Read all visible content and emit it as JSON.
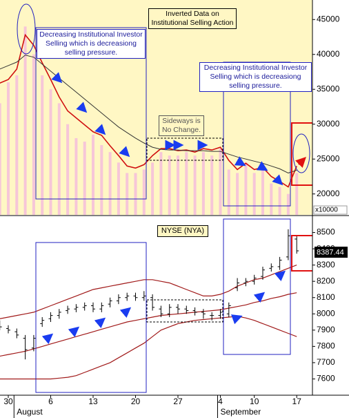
{
  "chart_data": [
    {
      "type": "combo",
      "title": "Inverted Data on Institutional Selling Action",
      "annotations": [
        "Decreasing Institutional Investor Selling which is decreasiong selling pressure.",
        "Sideways is No Change.",
        "Decreasing Institutional Investor Selling which is decreasiong selling pressure."
      ],
      "axis_label": "x10000",
      "ylim": [
        17000,
        47800
      ],
      "yticks": [
        45000,
        40000,
        35000,
        30000,
        25000,
        20000
      ],
      "series": [
        {
          "type": "bar",
          "color": "#f6c6d8",
          "values": [
            33000,
            36000,
            37000,
            44000,
            40000,
            37000,
            35000,
            33000,
            30000,
            28000,
            27500,
            28500,
            27000,
            26000,
            24500,
            23000,
            23000,
            23500,
            24500,
            26000,
            25500,
            25500,
            26000,
            25500,
            26000,
            25500,
            26500,
            23500,
            23000,
            24500,
            23000,
            23500,
            21500,
            21000,
            20000,
            23000
          ]
        },
        {
          "type": "line",
          "color": "#d01010",
          "values": [
            35900,
            36400,
            37900,
            42800,
            41300,
            38800,
            36400,
            33900,
            31900,
            30900,
            29900,
            28900,
            28400,
            26900,
            25500,
            24000,
            23700,
            24200,
            25500,
            26500,
            26500,
            26200,
            26300,
            26000,
            26500,
            26300,
            26700,
            24800,
            23500,
            24400,
            23500,
            23800,
            22500,
            21800,
            21000,
            24000
          ]
        },
        {
          "type": "line",
          "color": "#333333",
          "values": [
            37900,
            38400,
            38900,
            39900,
            39600,
            38600,
            37600,
            36600,
            35600,
            34600,
            33600,
            32600,
            31600,
            30600,
            29600,
            28800,
            28000,
            27300,
            26700,
            26400,
            26300,
            26300,
            26200,
            26200,
            26200,
            26100,
            26100,
            25700,
            25300,
            25000,
            24700,
            24400,
            24000,
            23600,
            23000,
            23400
          ]
        }
      ]
    },
    {
      "type": "ohlc",
      "title": "NYSE (NYA)",
      "categories": [
        null,
        "30",
        null,
        null,
        null,
        null,
        "6",
        null,
        null,
        null,
        null,
        "13",
        null,
        null,
        null,
        null,
        "20",
        null,
        null,
        null,
        null,
        "27",
        null,
        null,
        null,
        null,
        "4",
        null,
        null,
        null,
        "10",
        null,
        null,
        null,
        null,
        "17"
      ],
      "months": [
        null,
        null,
        "August",
        null,
        null,
        null,
        null,
        null,
        null,
        null,
        null,
        null,
        null,
        null,
        null,
        null,
        null,
        null,
        null,
        null,
        null,
        null,
        null,
        null,
        null,
        null,
        "September",
        null,
        null,
        null,
        null,
        null,
        null,
        null,
        null,
        null
      ],
      "ylim": [
        7500,
        8600
      ],
      "yticks": [
        8500,
        8400,
        8300,
        8200,
        8100,
        8000,
        7900,
        7800,
        7700,
        7600
      ],
      "color": "#000000",
      "open": [
        7940,
        7910,
        7890,
        7850,
        7790,
        7940,
        7970,
        7990,
        8020,
        8030,
        8040,
        8050,
        8030,
        8060,
        8080,
        8100,
        8110,
        8100,
        8100,
        8030,
        8000,
        8040,
        8030,
        8020,
        8010,
        7990,
        7990,
        8000,
        8160,
        8190,
        8200,
        8230,
        8280,
        8290,
        8350,
        8460
      ],
      "high": [
        7960,
        7930,
        7910,
        7870,
        7870,
        7980,
        8010,
        8030,
        8050,
        8060,
        8070,
        8070,
        8070,
        8100,
        8120,
        8130,
        8130,
        8140,
        8120,
        8050,
        8060,
        8060,
        8050,
        8040,
        8030,
        8010,
        8030,
        8070,
        8220,
        8220,
        8240,
        8290,
        8310,
        8350,
        8520,
        8480
      ],
      "low": [
        7900,
        7880,
        7850,
        7720,
        7770,
        7920,
        7950,
        7970,
        8000,
        8010,
        8020,
        8010,
        8010,
        8040,
        8060,
        8080,
        8080,
        8080,
        8020,
        7980,
        7980,
        8000,
        8000,
        7990,
        7970,
        7960,
        7970,
        7980,
        8140,
        8170,
        8180,
        8210,
        8260,
        8270,
        8330,
        8370
      ],
      "close": [
        7920,
        7900,
        7870,
        7780,
        7850,
        7960,
        7990,
        8010,
        8030,
        8040,
        8050,
        8030,
        8050,
        8080,
        8100,
        8110,
        8100,
        8110,
        8040,
        8000,
        8040,
        8030,
        8020,
        8010,
        8000,
        7990,
        8010,
        8050,
        8190,
        8200,
        8220,
        8270,
        8290,
        8330,
        8480,
        8387.44
      ],
      "series": [
        {
          "color": "#a01818",
          "values": [
            7970,
            7980,
            7990,
            8000,
            8010,
            8030,
            8050,
            8070,
            8090,
            8110,
            8130,
            8150,
            8160,
            8170,
            8180,
            8190,
            8200,
            8210,
            8210,
            8200,
            8190,
            8170,
            8150,
            8130,
            8110,
            8110,
            8120,
            8140,
            8170,
            8190,
            8210,
            8220,
            8240,
            8260,
            8280,
            8300
          ]
        },
        {
          "color": "#a01818",
          "values": [
            7740,
            7750,
            7760,
            7770,
            7785,
            7800,
            7815,
            7830,
            7845,
            7860,
            7875,
            7890,
            7905,
            7920,
            7935,
            7950,
            7960,
            7970,
            7980,
            7990,
            7995,
            8000,
            8005,
            8010,
            8015,
            8020,
            8025,
            8035,
            8045,
            8055,
            8070,
            8080,
            8095,
            8105,
            8120,
            8130
          ]
        },
        {
          "color": "#a01818",
          "values": [
            7600,
            7600,
            7600,
            7600,
            7600,
            7600,
            7600,
            7605,
            7610,
            7620,
            7640,
            7660,
            7680,
            7700,
            7730,
            7760,
            7790,
            7820,
            7860,
            7900,
            7920,
            7940,
            7950,
            7960,
            7965,
            7970,
            7975,
            7980,
            7985,
            7975,
            7960,
            7940,
            7920,
            7900,
            7880,
            7860
          ]
        }
      ]
    }
  ]
}
